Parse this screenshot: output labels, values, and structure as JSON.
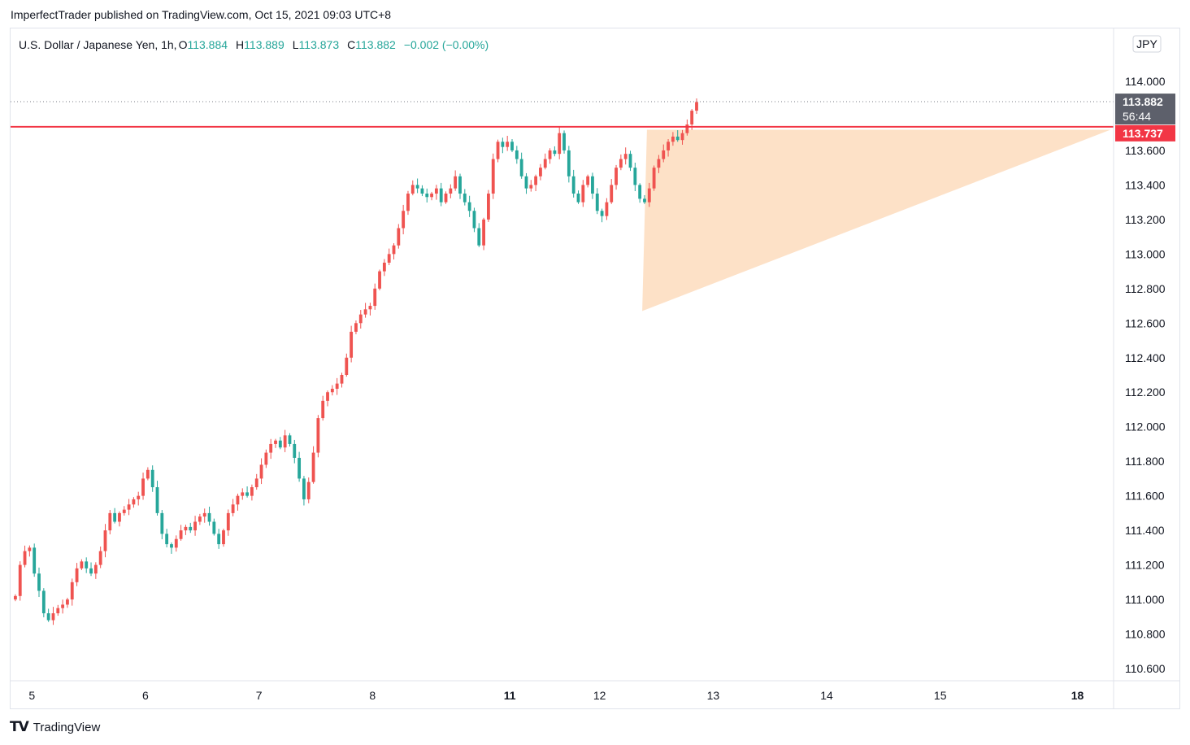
{
  "header": {
    "published_text": "ImperfectTrader published on TradingView.com, Oct 15, 2021 09:03 UTC+8"
  },
  "footer": {
    "brand": "TradingView",
    "logo_icon": "tradingview-logo-icon"
  },
  "legend": {
    "symbol": "U.S. Dollar / Japanese Yen, 1h,",
    "o_label": "O",
    "o_value": "113.884",
    "h_label": "H",
    "h_value": "113.889",
    "l_label": "L",
    "l_value": "113.873",
    "c_label": "C",
    "c_value": "113.882",
    "change": "−0.002 (−0.00%)"
  },
  "currency_badge": "JPY",
  "price_tags": {
    "last_price": "113.882",
    "countdown": "56:44",
    "resistance": "113.737"
  },
  "colors": {
    "up": "#ef5350",
    "down": "#26a69a",
    "resistance": "#f23645",
    "triangle": "#fddcbd",
    "legend_values": "#26a69a",
    "axis_text": "#131722",
    "last_tag": "#5d606b"
  },
  "chart_data": {
    "type": "candlestick",
    "title": "",
    "xlabel": "",
    "ylabel": "",
    "ylim": [
      110.52,
      114.18
    ],
    "y_ticks": [
      "114.000",
      "113.800",
      "113.600",
      "113.400",
      "113.200",
      "113.000",
      "112.800",
      "112.600",
      "112.400",
      "112.200",
      "112.000",
      "111.800",
      "111.600",
      "111.400",
      "111.200",
      "111.000",
      "110.800",
      "110.600"
    ],
    "x_ticks": [
      {
        "label": "5",
        "bar": 4,
        "bold": false
      },
      {
        "label": "6",
        "bar": 28,
        "bold": false
      },
      {
        "label": "7",
        "bar": 52,
        "bold": false
      },
      {
        "label": "8",
        "bar": 76,
        "bold": false
      },
      {
        "label": "11",
        "bar": 105,
        "bold": true
      },
      {
        "label": "12",
        "bar": 124,
        "bold": false
      },
      {
        "label": "13",
        "bar": 148,
        "bold": false
      },
      {
        "label": "14",
        "bar": 172,
        "bold": false
      },
      {
        "label": "15",
        "bar": 196,
        "bold": false
      },
      {
        "label": "18",
        "bar": 225,
        "bold": true
      }
    ],
    "resistance_level": 113.737,
    "last_price": 113.882,
    "triangle": [
      {
        "bar": 134,
        "price": 113.72
      },
      {
        "bar": 232,
        "price": 113.72
      },
      {
        "bar": 133,
        "price": 112.67
      }
    ],
    "path": [
      111.02,
      111.2,
      111.28,
      111.3,
      111.15,
      111.05,
      110.92,
      110.88,
      110.92,
      110.95,
      110.97,
      111.0,
      111.1,
      111.18,
      111.22,
      111.18,
      111.15,
      111.2,
      111.28,
      111.4,
      111.5,
      111.45,
      111.5,
      111.52,
      111.55,
      111.58,
      111.6,
      111.7,
      111.75,
      111.65,
      111.5,
      111.38,
      111.32,
      111.3,
      111.35,
      111.4,
      111.42,
      111.4,
      111.45,
      111.48,
      111.5,
      111.45,
      111.38,
      111.32,
      111.4,
      111.5,
      111.55,
      111.6,
      111.62,
      111.6,
      111.65,
      111.7,
      111.78,
      111.85,
      111.9,
      111.92,
      111.88,
      111.95,
      111.9,
      111.82,
      111.7,
      111.58,
      111.68,
      111.85,
      112.05,
      112.15,
      112.2,
      112.22,
      112.25,
      112.3,
      112.4,
      112.55,
      112.6,
      112.65,
      112.68,
      112.7,
      112.8,
      112.9,
      112.95,
      113.0,
      113.05,
      113.15,
      113.25,
      113.35,
      113.4,
      113.38,
      113.35,
      113.33,
      113.35,
      113.38,
      113.3,
      113.35,
      113.38,
      113.45,
      113.35,
      113.3,
      113.25,
      113.15,
      113.05,
      113.2,
      113.35,
      113.55,
      113.65,
      113.62,
      113.65,
      113.6,
      113.55,
      113.45,
      113.38,
      113.4,
      113.45,
      113.5,
      113.55,
      113.6,
      113.58,
      113.7,
      113.6,
      113.45,
      113.35,
      113.3,
      113.4,
      113.45,
      113.35,
      113.25,
      113.22,
      113.3,
      113.4,
      113.5,
      113.55,
      113.58,
      113.5,
      113.4,
      113.32,
      113.3,
      113.38,
      113.5,
      113.55,
      113.6,
      113.65,
      113.68,
      113.66,
      113.7,
      113.75,
      113.83,
      113.88
    ]
  }
}
